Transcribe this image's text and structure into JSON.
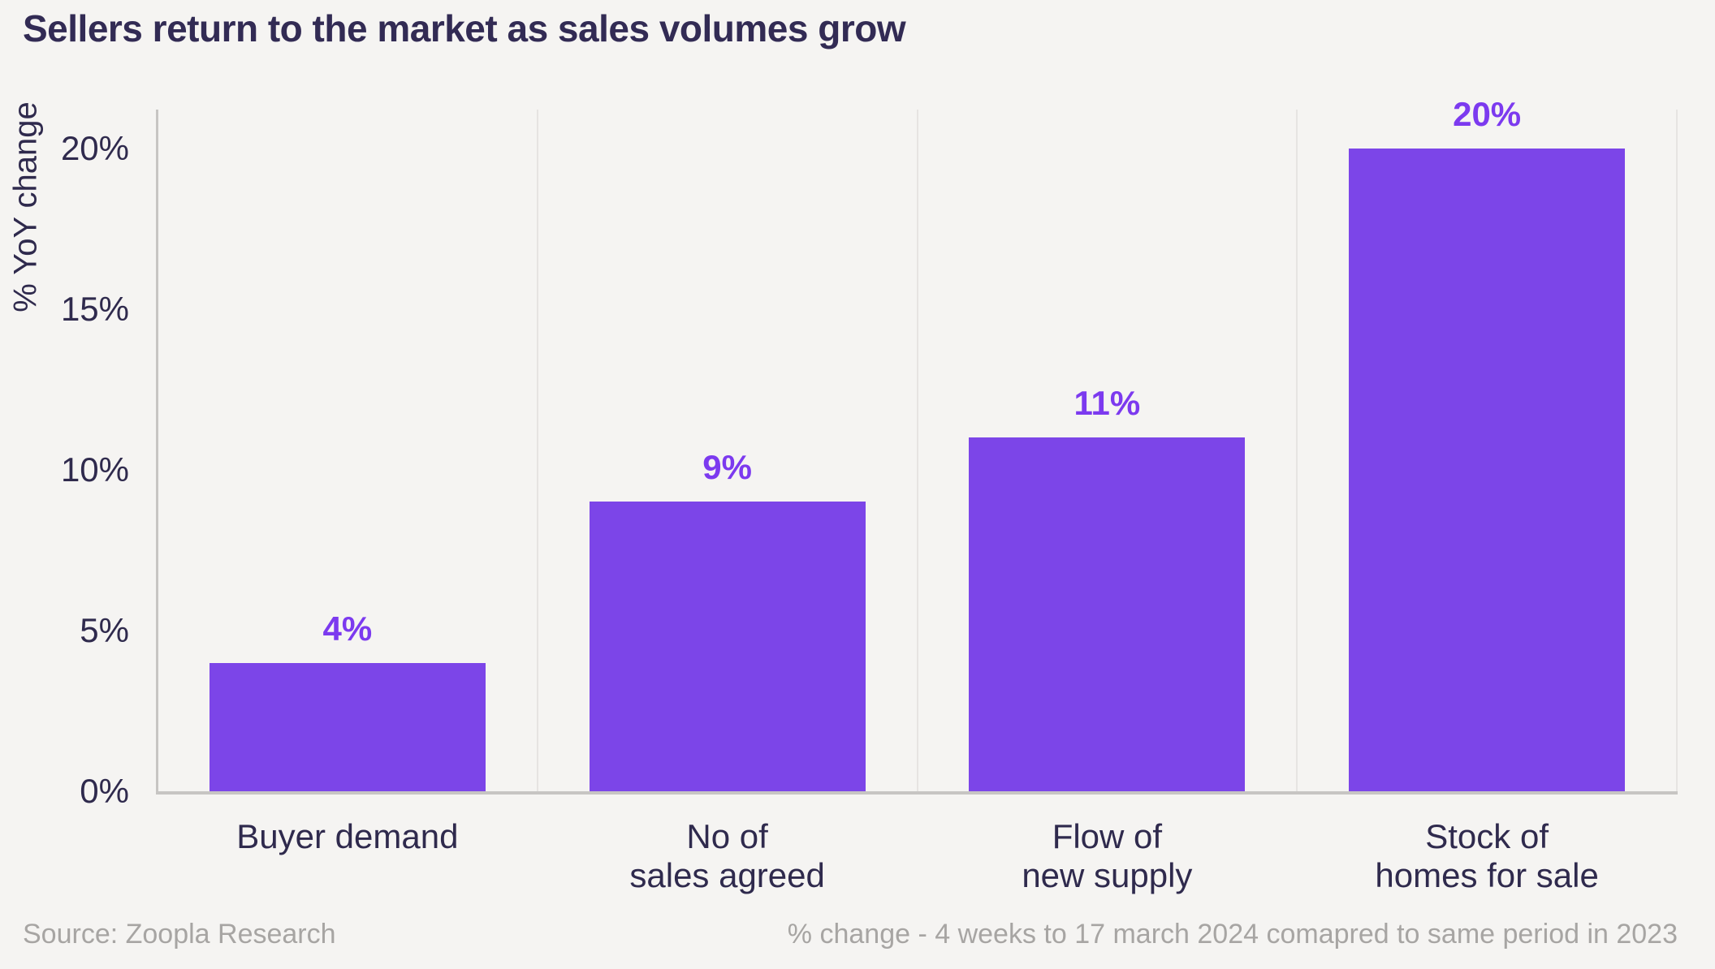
{
  "page": {
    "background": "#F5F4F2"
  },
  "title": "Sellers return to the market as sales volumes grow",
  "footer": {
    "source": "Source: Zoopla Research",
    "note": "% change - 4 weeks to 17 march 2024 comapred to same period in 2023"
  },
  "chart_data": {
    "type": "bar",
    "title": "Sellers return to the market as sales volumes grow",
    "categories": [
      "Buyer demand",
      "No of\nsales agreed",
      "Flow of\nnew supply",
      "Stock of\nhomes for sale"
    ],
    "values": [
      4,
      9,
      11,
      20
    ],
    "value_labels": [
      "4%",
      "9%",
      "11%",
      "20%"
    ],
    "xlabel": "",
    "ylabel": "% YoY change",
    "yticks": [
      0,
      5,
      10,
      15,
      20
    ],
    "ytick_labels": [
      "0%",
      "5%",
      "10%",
      "15%",
      "20%"
    ],
    "ylim": [
      0,
      21.2
    ],
    "grid": "vertical category separators only, no horizontal gridlines",
    "legend": "none",
    "colors": {
      "bar": "#7C45E8",
      "value_label": "#7C3AEF",
      "axis_line": "#C7C5C3",
      "separator_line": "#E6E4E2",
      "text_dark": "#2F2A4D",
      "title_text": "#322B54",
      "footer_text": "#A7A5A3"
    }
  }
}
